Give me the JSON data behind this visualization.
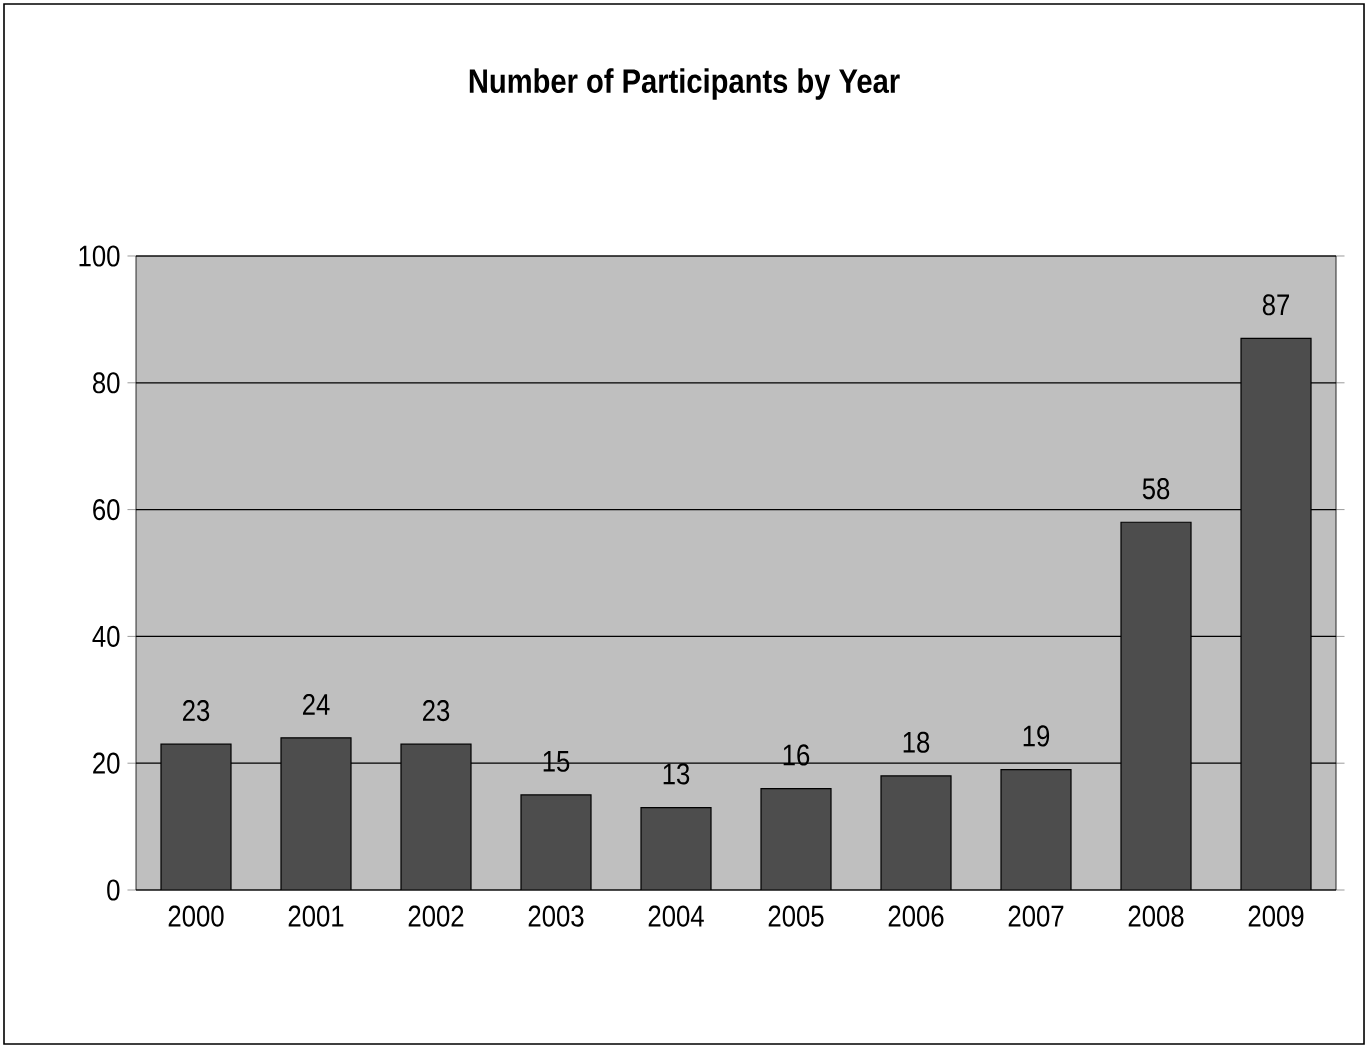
{
  "chart_data": {
    "type": "bar",
    "title": "Number of Participants by Year",
    "categories": [
      "2000",
      "2001",
      "2002",
      "2003",
      "2004",
      "2005",
      "2006",
      "2007",
      "2008",
      "2009"
    ],
    "values": [
      23,
      24,
      23,
      15,
      13,
      16,
      18,
      19,
      58,
      87
    ],
    "color": "#4d4d4d",
    "ylim": [
      0,
      100
    ],
    "yticks": [
      0,
      20,
      40,
      60,
      80,
      100
    ],
    "grid": "y",
    "data_labels": true
  }
}
